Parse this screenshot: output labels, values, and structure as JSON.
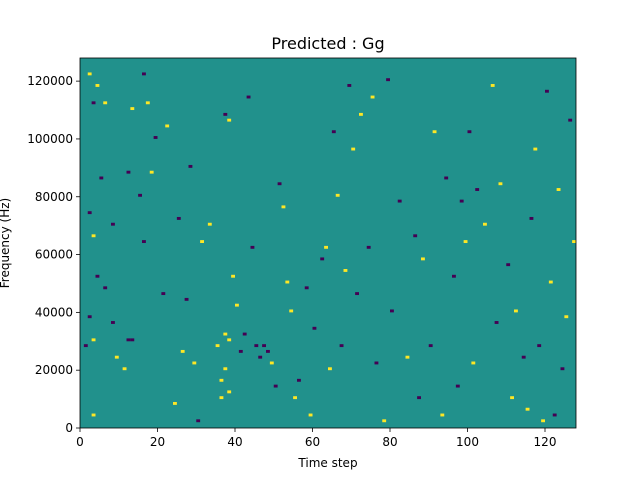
{
  "chart_data": {
    "type": "heatmap",
    "title": "Predicted : Gg",
    "xlabel": "Time step",
    "ylabel": "Frequency (Hz)",
    "xlim": [
      0,
      128
    ],
    "ylim": [
      0,
      128000
    ],
    "x_ticks": [
      0,
      20,
      40,
      60,
      80,
      100,
      120
    ],
    "y_ticks": [
      0,
      20000,
      40000,
      60000,
      80000,
      100000,
      120000
    ],
    "n_time_steps": 128,
    "n_freq_bins": 128,
    "colormap": "viridis",
    "levels": [
      -1,
      0,
      1
    ],
    "level_colors": {
      "-1": "#440154",
      "0": "#21918c",
      "1": "#fde725"
    },
    "background_level": 0,
    "cells": [
      {
        "t": 2,
        "f": 122000,
        "level": 1
      },
      {
        "t": 3,
        "f": 112000,
        "level": -1
      },
      {
        "t": 4,
        "f": 118000,
        "level": 1
      },
      {
        "t": 3,
        "f": 4000,
        "level": 1
      },
      {
        "t": 5,
        "f": 86000,
        "level": -1
      },
      {
        "t": 6,
        "f": 112000,
        "level": 1
      },
      {
        "t": 2,
        "f": 74000,
        "level": -1
      },
      {
        "t": 3,
        "f": 66000,
        "level": 1
      },
      {
        "t": 4,
        "f": 52000,
        "level": -1
      },
      {
        "t": 2,
        "f": 38000,
        "level": -1
      },
      {
        "t": 3,
        "f": 30000,
        "level": 1
      },
      {
        "t": 1,
        "f": 28000,
        "level": -1
      },
      {
        "t": 6,
        "f": 48000,
        "level": -1
      },
      {
        "t": 8,
        "f": 70000,
        "level": -1
      },
      {
        "t": 8,
        "f": 36000,
        "level": -1
      },
      {
        "t": 9,
        "f": 24000,
        "level": 1
      },
      {
        "t": 11,
        "f": 20000,
        "level": 1
      },
      {
        "t": 12,
        "f": 30000,
        "level": -1
      },
      {
        "t": 13,
        "f": 30000,
        "level": -1
      },
      {
        "t": 12,
        "f": 88000,
        "level": -1
      },
      {
        "t": 13,
        "f": 110000,
        "level": 1
      },
      {
        "t": 15,
        "f": 80000,
        "level": -1
      },
      {
        "t": 16,
        "f": 64000,
        "level": -1
      },
      {
        "t": 16,
        "f": 122000,
        "level": -1
      },
      {
        "t": 17,
        "f": 112000,
        "level": 1
      },
      {
        "t": 18,
        "f": 88000,
        "level": 1
      },
      {
        "t": 19,
        "f": 100000,
        "level": -1
      },
      {
        "t": 21,
        "f": 46000,
        "level": -1
      },
      {
        "t": 22,
        "f": 104000,
        "level": 1
      },
      {
        "t": 24,
        "f": 8000,
        "level": 1
      },
      {
        "t": 25,
        "f": 72000,
        "level": -1
      },
      {
        "t": 26,
        "f": 26000,
        "level": 1
      },
      {
        "t": 27,
        "f": 44000,
        "level": -1
      },
      {
        "t": 28,
        "f": 90000,
        "level": -1
      },
      {
        "t": 29,
        "f": 22000,
        "level": 1
      },
      {
        "t": 30,
        "f": 2000,
        "level": -1
      },
      {
        "t": 31,
        "f": 64000,
        "level": 1
      },
      {
        "t": 33,
        "f": 70000,
        "level": 1
      },
      {
        "t": 35,
        "f": 28000,
        "level": 1
      },
      {
        "t": 36,
        "f": 10000,
        "level": 1
      },
      {
        "t": 36,
        "f": 16000,
        "level": 1
      },
      {
        "t": 37,
        "f": 20000,
        "level": 1
      },
      {
        "t": 37,
        "f": 32000,
        "level": 1
      },
      {
        "t": 38,
        "f": 30000,
        "level": 1
      },
      {
        "t": 38,
        "f": 12000,
        "level": 1
      },
      {
        "t": 39,
        "f": 52000,
        "level": 1
      },
      {
        "t": 37,
        "f": 108000,
        "level": -1
      },
      {
        "t": 38,
        "f": 106000,
        "level": 1
      },
      {
        "t": 40,
        "f": 42000,
        "level": 1
      },
      {
        "t": 41,
        "f": 26000,
        "level": -1
      },
      {
        "t": 42,
        "f": 32000,
        "level": -1
      },
      {
        "t": 43,
        "f": 114000,
        "level": -1
      },
      {
        "t": 44,
        "f": 62000,
        "level": -1
      },
      {
        "t": 45,
        "f": 28000,
        "level": -1
      },
      {
        "t": 46,
        "f": 24000,
        "level": -1
      },
      {
        "t": 47,
        "f": 28000,
        "level": -1
      },
      {
        "t": 48,
        "f": 26000,
        "level": -1
      },
      {
        "t": 49,
        "f": 22000,
        "level": 1
      },
      {
        "t": 50,
        "f": 14000,
        "level": -1
      },
      {
        "t": 51,
        "f": 84000,
        "level": -1
      },
      {
        "t": 52,
        "f": 76000,
        "level": 1
      },
      {
        "t": 53,
        "f": 50000,
        "level": 1
      },
      {
        "t": 54,
        "f": 40000,
        "level": 1
      },
      {
        "t": 55,
        "f": 10000,
        "level": 1
      },
      {
        "t": 56,
        "f": 16000,
        "level": -1
      },
      {
        "t": 58,
        "f": 48000,
        "level": -1
      },
      {
        "t": 59,
        "f": 4000,
        "level": 1
      },
      {
        "t": 60,
        "f": 34000,
        "level": -1
      },
      {
        "t": 62,
        "f": 58000,
        "level": -1
      },
      {
        "t": 63,
        "f": 62000,
        "level": 1
      },
      {
        "t": 64,
        "f": 20000,
        "level": 1
      },
      {
        "t": 65,
        "f": 102000,
        "level": -1
      },
      {
        "t": 66,
        "f": 80000,
        "level": 1
      },
      {
        "t": 67,
        "f": 28000,
        "level": -1
      },
      {
        "t": 68,
        "f": 54000,
        "level": 1
      },
      {
        "t": 69,
        "f": 118000,
        "level": -1
      },
      {
        "t": 70,
        "f": 96000,
        "level": 1
      },
      {
        "t": 71,
        "f": 46000,
        "level": -1
      },
      {
        "t": 72,
        "f": 108000,
        "level": 1
      },
      {
        "t": 74,
        "f": 62000,
        "level": -1
      },
      {
        "t": 75,
        "f": 114000,
        "level": 1
      },
      {
        "t": 76,
        "f": 22000,
        "level": -1
      },
      {
        "t": 78,
        "f": 2000,
        "level": 1
      },
      {
        "t": 79,
        "f": 120000,
        "level": -1
      },
      {
        "t": 80,
        "f": 40000,
        "level": -1
      },
      {
        "t": 82,
        "f": 78000,
        "level": -1
      },
      {
        "t": 84,
        "f": 24000,
        "level": 1
      },
      {
        "t": 86,
        "f": 66000,
        "level": -1
      },
      {
        "t": 87,
        "f": 10000,
        "level": -1
      },
      {
        "t": 88,
        "f": 58000,
        "level": 1
      },
      {
        "t": 90,
        "f": 28000,
        "level": -1
      },
      {
        "t": 91,
        "f": 102000,
        "level": 1
      },
      {
        "t": 93,
        "f": 4000,
        "level": 1
      },
      {
        "t": 94,
        "f": 86000,
        "level": -1
      },
      {
        "t": 96,
        "f": 52000,
        "level": -1
      },
      {
        "t": 97,
        "f": 14000,
        "level": -1
      },
      {
        "t": 98,
        "f": 78000,
        "level": -1
      },
      {
        "t": 99,
        "f": 64000,
        "level": 1
      },
      {
        "t": 100,
        "f": 102000,
        "level": -1
      },
      {
        "t": 101,
        "f": 22000,
        "level": 1
      },
      {
        "t": 102,
        "f": 82000,
        "level": -1
      },
      {
        "t": 104,
        "f": 70000,
        "level": 1
      },
      {
        "t": 106,
        "f": 118000,
        "level": 1
      },
      {
        "t": 107,
        "f": 36000,
        "level": -1
      },
      {
        "t": 108,
        "f": 84000,
        "level": 1
      },
      {
        "t": 110,
        "f": 56000,
        "level": -1
      },
      {
        "t": 111,
        "f": 10000,
        "level": 1
      },
      {
        "t": 112,
        "f": 40000,
        "level": 1
      },
      {
        "t": 114,
        "f": 24000,
        "level": -1
      },
      {
        "t": 115,
        "f": 6000,
        "level": 1
      },
      {
        "t": 116,
        "f": 72000,
        "level": -1
      },
      {
        "t": 117,
        "f": 96000,
        "level": 1
      },
      {
        "t": 118,
        "f": 28000,
        "level": -1
      },
      {
        "t": 119,
        "f": 2000,
        "level": 1
      },
      {
        "t": 120,
        "f": 116000,
        "level": -1
      },
      {
        "t": 121,
        "f": 50000,
        "level": 1
      },
      {
        "t": 122,
        "f": 4000,
        "level": -1
      },
      {
        "t": 123,
        "f": 82000,
        "level": 1
      },
      {
        "t": 124,
        "f": 20000,
        "level": -1
      },
      {
        "t": 125,
        "f": 38000,
        "level": 1
      },
      {
        "t": 126,
        "f": 106000,
        "level": -1
      },
      {
        "t": 127,
        "f": 64000,
        "level": 1
      }
    ]
  }
}
